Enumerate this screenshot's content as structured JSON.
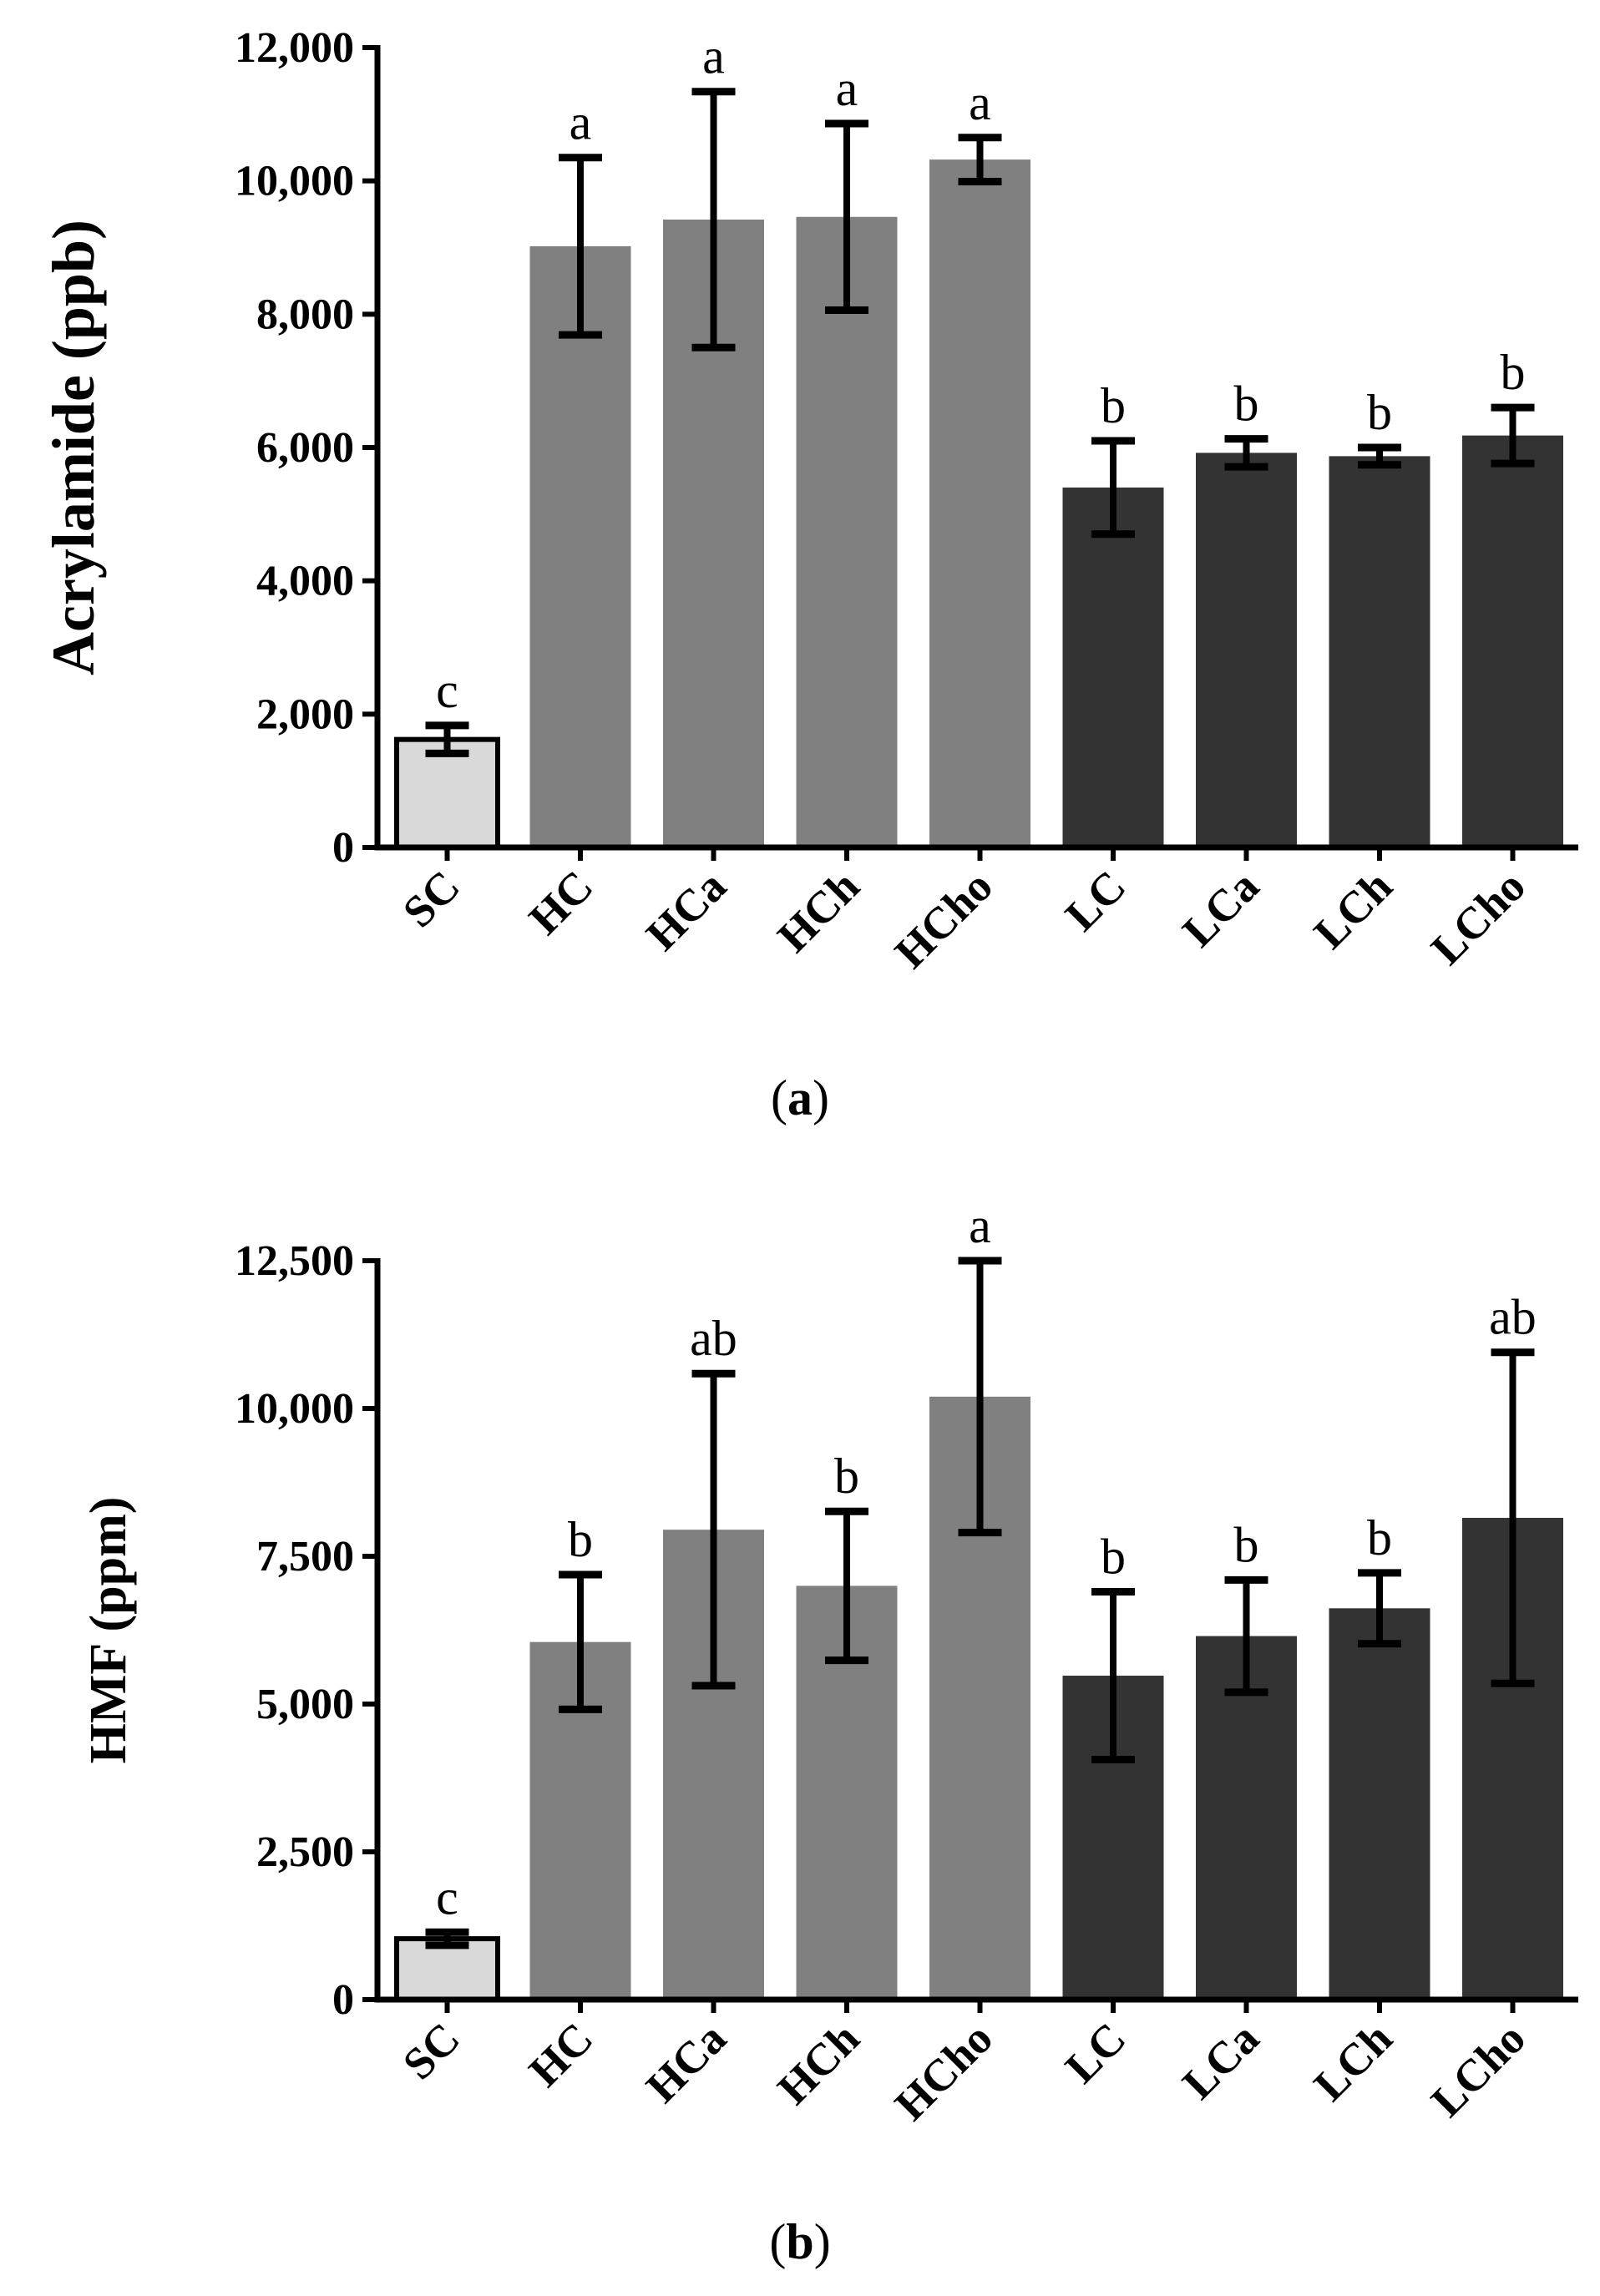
{
  "colors": {
    "SC": "#d9d9d9",
    "H": "#808080",
    "L": "#333333",
    "error_bar": "#000000",
    "axis": "#000000"
  },
  "chart_data": [
    {
      "panel": "a",
      "type": "bar",
      "caption_open": "(",
      "caption_letter": "a",
      "caption_close": ")",
      "title": "",
      "xlabel": "",
      "ylabel": "Acrylamide (ppb)",
      "ylim": [
        0,
        12000
      ],
      "yticks": [
        0,
        2000,
        4000,
        6000,
        8000,
        10000,
        12000
      ],
      "ytick_labels": [
        "0",
        "2,000",
        "4,000",
        "6,000",
        "8,000",
        "10,000",
        "12,000"
      ],
      "categories": [
        "SC",
        "HC",
        "HCa",
        "HCh",
        "HCho",
        "LC",
        "LCa",
        "LCh",
        "LCho"
      ],
      "groups": [
        "SC",
        "H",
        "H",
        "H",
        "H",
        "L",
        "L",
        "L",
        "L"
      ],
      "values": [
        1620,
        9020,
        9420,
        9460,
        10320,
        5400,
        5920,
        5870,
        6180
      ],
      "errors": [
        210,
        1330,
        1920,
        1400,
        330,
        700,
        210,
        130,
        420
      ],
      "significance": [
        "c",
        "a",
        "a",
        "a",
        "a",
        "b",
        "b",
        "b",
        "b"
      ]
    },
    {
      "panel": "b",
      "type": "bar",
      "caption_open": "(",
      "caption_letter": "b",
      "caption_close": ")",
      "title": "",
      "xlabel": "",
      "ylabel": "HMF (ppm)",
      "ylim": [
        0,
        12500
      ],
      "yticks": [
        0,
        2500,
        5000,
        7500,
        10000,
        12500
      ],
      "ytick_labels": [
        "0",
        "2,500",
        "5,000",
        "7,500",
        "10,000",
        "12,500"
      ],
      "categories": [
        "SC",
        "HC",
        "HCa",
        "HCh",
        "HCho",
        "LC",
        "LCa",
        "LCh",
        "LCho"
      ],
      "groups": [
        "SC",
        "H",
        "H",
        "H",
        "H",
        "L",
        "L",
        "L",
        "L"
      ],
      "values": [
        1030,
        6050,
        7950,
        7000,
        10200,
        5480,
        6150,
        6620,
        8150
      ],
      "errors": [
        110,
        1140,
        2640,
        1260,
        2300,
        1420,
        950,
        600,
        2800
      ],
      "significance": [
        "c",
        "b",
        "ab",
        "b",
        "a",
        "b",
        "b",
        "b",
        "ab"
      ]
    }
  ]
}
